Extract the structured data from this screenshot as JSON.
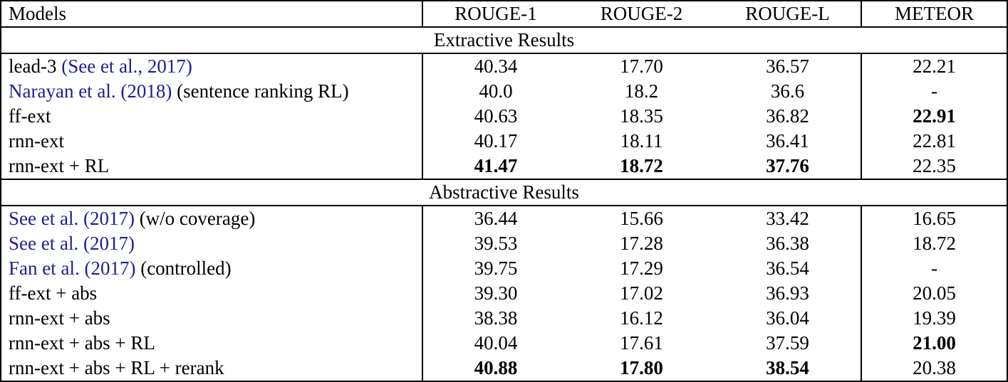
{
  "colors": {
    "citation_link": "#1f1f8f",
    "text": "#000000",
    "border": "#000000",
    "background": "#ffffff"
  },
  "table": {
    "columns": [
      "Models",
      "ROUGE-1",
      "ROUGE-2",
      "ROUGE-L",
      "METEOR"
    ],
    "sections": [
      {
        "title": "Extractive Results",
        "rows": [
          {
            "model_parts": [
              {
                "text": "lead-3 ",
                "cite": false
              },
              {
                "text": "(See et al., 2017)",
                "cite": true
              }
            ],
            "values": [
              "40.34",
              "17.70",
              "36.57",
              "22.21"
            ],
            "bold": [
              false,
              false,
              false,
              false
            ]
          },
          {
            "model_parts": [
              {
                "text": "Narayan et al. (2018)",
                "cite": true
              },
              {
                "text": " (sentence ranking RL)",
                "cite": false
              }
            ],
            "values": [
              "40.0",
              "18.2",
              "36.6",
              "-"
            ],
            "bold": [
              false,
              false,
              false,
              false
            ]
          },
          {
            "model_parts": [
              {
                "text": "ff-ext",
                "cite": false
              }
            ],
            "values": [
              "40.63",
              "18.35",
              "36.82",
              "22.91"
            ],
            "bold": [
              false,
              false,
              false,
              true
            ]
          },
          {
            "model_parts": [
              {
                "text": "rnn-ext",
                "cite": false
              }
            ],
            "values": [
              "40.17",
              "18.11",
              "36.41",
              "22.81"
            ],
            "bold": [
              false,
              false,
              false,
              false
            ]
          },
          {
            "model_parts": [
              {
                "text": "rnn-ext + RL",
                "cite": false
              }
            ],
            "values": [
              "41.47",
              "18.72",
              "37.76",
              "22.35"
            ],
            "bold": [
              true,
              true,
              true,
              false
            ]
          }
        ]
      },
      {
        "title": "Abstractive Results",
        "rows": [
          {
            "model_parts": [
              {
                "text": "See et al. (2017)",
                "cite": true
              },
              {
                "text": " (w/o coverage)",
                "cite": false
              }
            ],
            "values": [
              "36.44",
              "15.66",
              "33.42",
              "16.65"
            ],
            "bold": [
              false,
              false,
              false,
              false
            ]
          },
          {
            "model_parts": [
              {
                "text": "See et al. (2017)",
                "cite": true
              }
            ],
            "values": [
              "39.53",
              "17.28",
              "36.38",
              "18.72"
            ],
            "bold": [
              false,
              false,
              false,
              false
            ]
          },
          {
            "model_parts": [
              {
                "text": "Fan et al. (2017)",
                "cite": true
              },
              {
                "text": " (controlled)",
                "cite": false
              }
            ],
            "values": [
              "39.75",
              "17.29",
              "36.54",
              "-"
            ],
            "bold": [
              false,
              false,
              false,
              false
            ]
          },
          {
            "model_parts": [
              {
                "text": "ff-ext + abs",
                "cite": false
              }
            ],
            "values": [
              "39.30",
              "17.02",
              "36.93",
              "20.05"
            ],
            "bold": [
              false,
              false,
              false,
              false
            ]
          },
          {
            "model_parts": [
              {
                "text": "rnn-ext + abs",
                "cite": false
              }
            ],
            "values": [
              "38.38",
              "16.12",
              "36.04",
              "19.39"
            ],
            "bold": [
              false,
              false,
              false,
              false
            ]
          },
          {
            "model_parts": [
              {
                "text": "rnn-ext + abs + RL",
                "cite": false
              }
            ],
            "values": [
              "40.04",
              "17.61",
              "37.59",
              "21.00"
            ],
            "bold": [
              false,
              false,
              false,
              true
            ]
          },
          {
            "model_parts": [
              {
                "text": "rnn-ext + abs + RL + rerank",
                "cite": false
              }
            ],
            "values": [
              "40.88",
              "17.80",
              "38.54",
              "20.38"
            ],
            "bold": [
              true,
              true,
              true,
              false
            ]
          }
        ]
      }
    ]
  }
}
